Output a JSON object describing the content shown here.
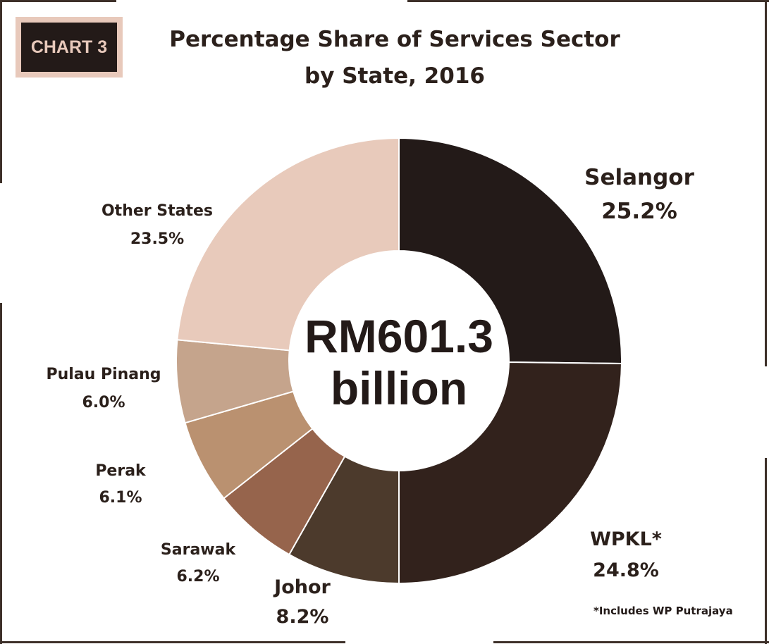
{
  "badge": "CHART 3",
  "chart_data": {
    "type": "pie",
    "title": "Percentage Share of Services Sector by State, 2016",
    "title_lines": [
      "Percentage Share of Services Sector",
      "by State, 2016"
    ],
    "unit": "%",
    "center_label": [
      "RM601.3",
      "billion"
    ],
    "categories": [
      "Selangor",
      "WPKL*",
      "Johor",
      "Sarawak",
      "Perak",
      "Pulau Pinang",
      "Other States"
    ],
    "values": [
      25.2,
      24.8,
      8.2,
      6.2,
      6.1,
      6.0,
      23.5
    ],
    "value_labels": [
      "25.2%",
      "24.8%",
      "8.2%",
      "6.2%",
      "6.1%",
      "6.0%",
      "23.5%"
    ],
    "colors": [
      "#231a18",
      "#32221c",
      "#4c3a2c",
      "#96644c",
      "#ba9170",
      "#c5a48c",
      "#e8cabb"
    ],
    "footnote": "*Includes WP Putrajaya"
  }
}
